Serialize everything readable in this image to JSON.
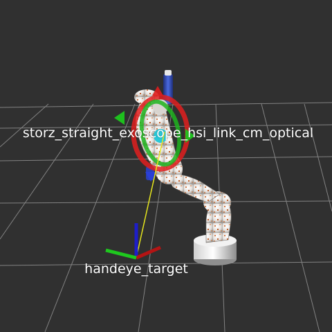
{
  "viewport": {
    "background_color": "#303030",
    "grid_color": "#8c8c8c"
  },
  "frames": {
    "exoscope_optical": {
      "label": "storz_straight_exoscope_hsi_link_cm_optical"
    },
    "handeye_target": {
      "label": "handeye_target"
    }
  },
  "colors": {
    "axis_x": "#d21414",
    "axis_y": "#1ec81e",
    "axis_z": "#1e1ec8",
    "link_line": "#e6e61e",
    "robot_body": "#eeeae6",
    "robot_speckle": "#d2641e",
    "marker_ring_red": "#e01e1e",
    "marker_ring_green": "#1eb41e",
    "camera_blue": "#3a5ad2"
  },
  "icons": {
    "exoscope_frame": "interactive-marker-rings",
    "target_frame": "axes-triad"
  }
}
